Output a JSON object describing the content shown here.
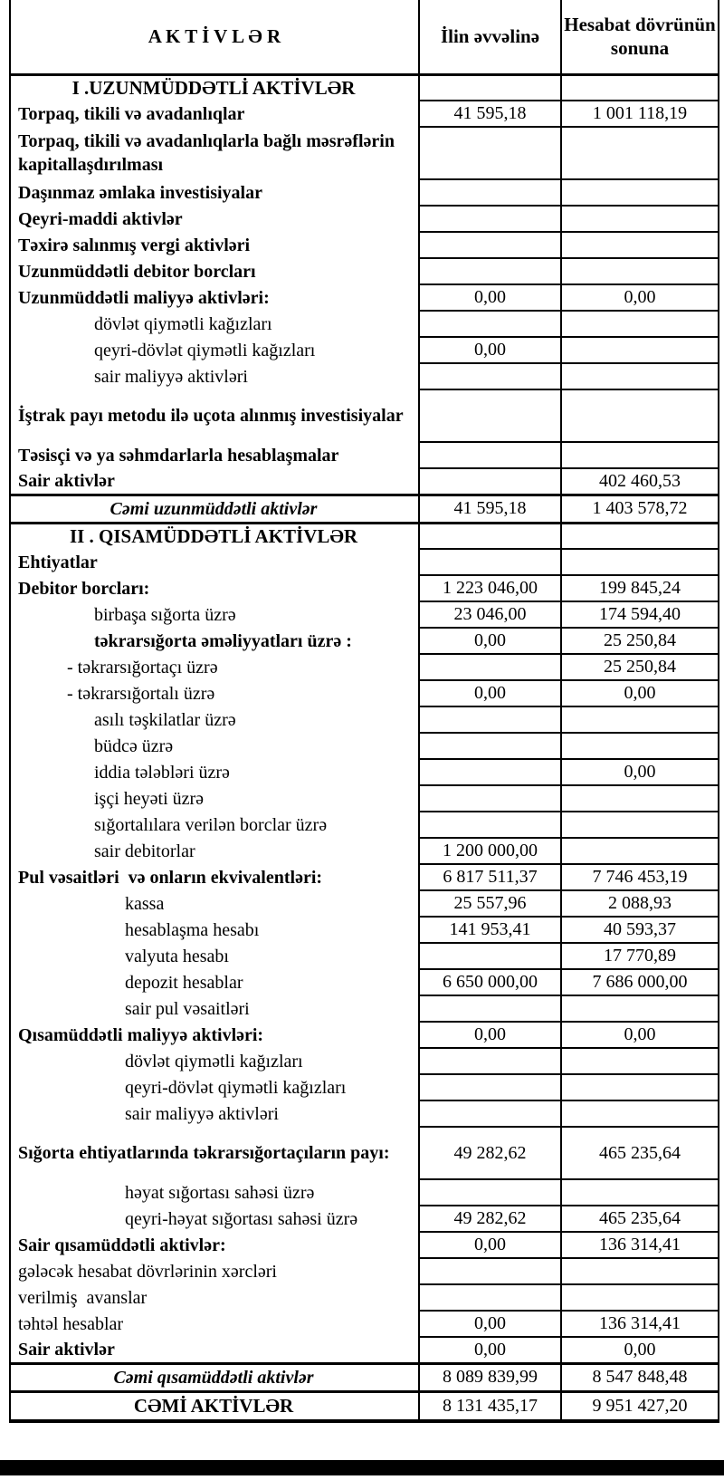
{
  "header": {
    "assets": "A K T İ V L Ə R",
    "begin": "İlin əvvəlinə",
    "end": "Hesabat dövrünün sonuna"
  },
  "colors": {
    "border": "#000000",
    "footer_bar": "#000000",
    "background": "#ffffff"
  },
  "rows": [
    {
      "l": "I .UZUNMÜDDƏTLİ AKTİVLƏR",
      "v1": "",
      "v2": "",
      "cls": "section"
    },
    {
      "l": "Torpaq, tikili və avadanlıqlar",
      "v1": "41 595,18",
      "v2": "1 001 118,19",
      "cls": "item"
    },
    {
      "l": "Torpaq, tikili və avadanlıqlarla bağlı məsrəflərin kapitallaşdırılması",
      "v1": "",
      "v2": "",
      "cls": "item tall"
    },
    {
      "l": "Daşınmaz əmlaka investisiyalar",
      "v1": "",
      "v2": "",
      "cls": "item"
    },
    {
      "l": "Qeyri-maddi aktivlər",
      "v1": "",
      "v2": "",
      "cls": "item"
    },
    {
      "l": "Təxirə salınmış vergi aktivləri",
      "v1": "",
      "v2": "",
      "cls": "item"
    },
    {
      "l": "Uzunmüddətli debitor borcları",
      "v1": "",
      "v2": "",
      "cls": "item"
    },
    {
      "l": "Uzunmüddətli maliyyə aktivləri:",
      "v1": "0,00",
      "v2": "0,00",
      "cls": "item"
    },
    {
      "l": "dövlət qiymətli kağızları",
      "v1": "",
      "v2": "",
      "cls": "sub"
    },
    {
      "l": "qeyri-dövlət qiymətli kağızları",
      "v1": "0,00",
      "v2": "",
      "cls": "sub"
    },
    {
      "l": "sair maliyyə aktivləri",
      "v1": "",
      "v2": "",
      "cls": "sub"
    },
    {
      "l": "İştrak payı metodu ilə uçota alınmış investisiyalar",
      "v1": "",
      "v2": "",
      "cls": "item tall"
    },
    {
      "l": "Təsisçi və ya səhmdarlarla hesablaşmalar",
      "v1": "",
      "v2": "",
      "cls": "item"
    },
    {
      "l": "Sair aktivlər",
      "v1": "",
      "v2": "402 460,53",
      "cls": "item"
    },
    {
      "l": "Cəmi uzunmüddətli aktivlər",
      "v1": "41 595,18",
      "v2": "1 403 578,72",
      "cls": "total"
    },
    {
      "l": "II . QISAMÜDDƏTLİ AKTİVLƏR",
      "v1": "",
      "v2": "",
      "cls": "section"
    },
    {
      "l": "Ehtiyatlar",
      "v1": "",
      "v2": "",
      "cls": "item"
    },
    {
      "l": "Debitor borcları:",
      "v1": "1 223 046,00",
      "v2": "199 845,24",
      "cls": "item"
    },
    {
      "l": "birbaşa sığorta üzrə",
      "v1": "23 046,00",
      "v2": "174 594,40",
      "cls": "sub"
    },
    {
      "l": "təkrarsığorta əməliyyatları üzrə :",
      "v1": "0,00",
      "v2": "25 250,84",
      "cls": "subb"
    },
    {
      "l": "- təkrarsığortaçı üzrə",
      "v1": "",
      "v2": "25 250,84",
      "cls": "dash"
    },
    {
      "l": "- təkrarsığortalı üzrə",
      "v1": "0,00",
      "v2": "0,00",
      "cls": "dash"
    },
    {
      "l": "asılı təşkilatlar üzrə",
      "v1": "",
      "v2": "",
      "cls": "sub"
    },
    {
      "l": "büdcə üzrə",
      "v1": "",
      "v2": "",
      "cls": "sub"
    },
    {
      "l": "iddia tələbləri üzrə",
      "v1": "",
      "v2": "0,00",
      "cls": "sub"
    },
    {
      "l": "işçi heyəti üzrə",
      "v1": "",
      "v2": "",
      "cls": "sub"
    },
    {
      "l": "sığortalılara verilən borclar üzrə",
      "v1": "",
      "v2": "",
      "cls": "sub"
    },
    {
      "l": "sair debitorlar",
      "v1": "1 200 000,00",
      "v2": "",
      "cls": "sub"
    },
    {
      "l": "Pul vəsaitləri  və onların ekvivalentləri:",
      "v1": "6 817 511,37",
      "v2": "7 746 453,19",
      "cls": "item"
    },
    {
      "l": "kassa",
      "v1": "25 557,96",
      "v2": "2 088,93",
      "cls": "sub2"
    },
    {
      "l": "hesablaşma hesabı",
      "v1": "141 953,41",
      "v2": "40 593,37",
      "cls": "sub2"
    },
    {
      "l": "valyuta hesabı",
      "v1": "",
      "v2": "17 770,89",
      "cls": "sub2"
    },
    {
      "l": "depozit hesablar",
      "v1": "6 650 000,00",
      "v2": "7 686 000,00",
      "cls": "sub2"
    },
    {
      "l": "sair pul vəsaitləri",
      "v1": "",
      "v2": "",
      "cls": "sub2"
    },
    {
      "l": "Qısamüddətli maliyyə aktivləri:",
      "v1": "0,00",
      "v2": "0,00",
      "cls": "item"
    },
    {
      "l": "dövlət qiymətli kağızları",
      "v1": "",
      "v2": "",
      "cls": "sub2"
    },
    {
      "l": "qeyri-dövlət qiymətli kağızları",
      "v1": "",
      "v2": "",
      "cls": "sub2"
    },
    {
      "l": "sair maliyyə aktivləri",
      "v1": "",
      "v2": "",
      "cls": "sub2"
    },
    {
      "l": "Sığorta ehtiyatlarında təkrarsığortaçıların payı:",
      "v1": "49 282,62",
      "v2": "465 235,64",
      "cls": "item tall"
    },
    {
      "l": "həyat sığortası sahəsi üzrə",
      "v1": "",
      "v2": "",
      "cls": "sub2"
    },
    {
      "l": "qeyri-həyat sığortası sahəsi üzrə",
      "v1": "49 282,62",
      "v2": "465 235,64",
      "cls": "sub2"
    },
    {
      "l": "Sair qısamüddətli aktivlər:",
      "v1": "0,00",
      "v2": "136 314,41",
      "cls": "item"
    },
    {
      "l": "gələcək hesabat dövrlərinin xərcləri",
      "v1": "",
      "v2": "",
      "cls": "plain"
    },
    {
      "l": "verilmiş  avanslar",
      "v1": "",
      "v2": "",
      "cls": "plain"
    },
    {
      "l": "təhtəl hesablar",
      "v1": "0,00",
      "v2": "136 314,41",
      "cls": "plain"
    },
    {
      "l": "Sair aktivlər",
      "v1": "0,00",
      "v2": "0,00",
      "cls": "item"
    },
    {
      "l": "Cəmi qısamüddətli aktivlər",
      "v1": "8 089 839,99",
      "v2": "8 547 848,48",
      "cls": "total"
    },
    {
      "l": "CƏMİ AKTİVLƏR",
      "v1": "8 131 435,17",
      "v2": "9 951 427,20",
      "cls": "grand"
    }
  ]
}
